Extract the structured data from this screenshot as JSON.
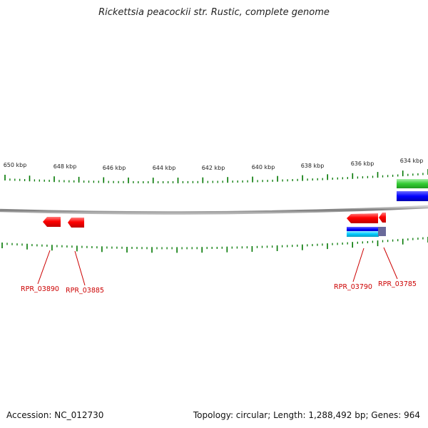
{
  "title": "Rickettsia peacockii str. Rustic, complete genome",
  "ruler": {
    "ticks": [
      "650 kbp",
      "648 kbp",
      "646 kbp",
      "644 kbp",
      "642 kbp",
      "640 kbp",
      "638 kbp",
      "636 kbp",
      "634 kbp"
    ]
  },
  "genes": [
    {
      "label": "RPR_03890",
      "strand": "reverse",
      "color": "#ff0000"
    },
    {
      "label": "RPR_03885",
      "strand": "reverse",
      "color": "#ff0000"
    },
    {
      "label": "RPR_03790",
      "strand": "reverse",
      "color": "#ff0000"
    },
    {
      "label": "RPR_03785",
      "strand": "reverse",
      "color": "#ff0000"
    }
  ],
  "feature_colors": {
    "cds_forward": "#33cc33",
    "cds_reverse": "#ff0000",
    "track_blue": "#0000ff",
    "track_cyan": "#00ccff",
    "backbone": "#808080",
    "ticks": "#007700"
  },
  "footer": {
    "accession": "Accession: NC_012730",
    "topology": "Topology: circular; Length: 1,288,492 bp; Genes: 964"
  }
}
